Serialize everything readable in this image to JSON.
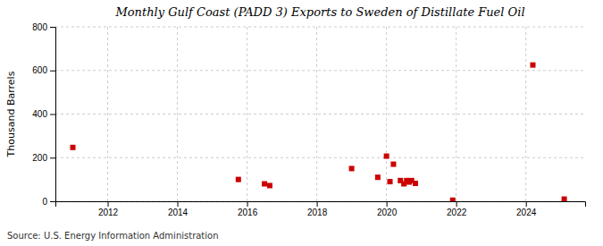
{
  "chart_data": {
    "type": "scatter",
    "title": "Monthly Gulf Coast (PADD 3) Exports to Sweden of Distillate Fuel Oil",
    "ylabel": "Thousand Barrels",
    "annotations": [
      "Source: U.S. Energy Information Administration"
    ],
    "x": [
      2011.0,
      2015.75,
      2016.5,
      2016.65,
      2019.0,
      2019.75,
      2020.0,
      2020.1,
      2020.2,
      2020.4,
      2020.5,
      2020.58,
      2020.65,
      2020.72,
      2020.83,
      2021.9,
      2024.2,
      2025.1
    ],
    "values": [
      247,
      100,
      80,
      72,
      150,
      110,
      207,
      90,
      170,
      95,
      80,
      95,
      88,
      95,
      82,
      5,
      625,
      10
    ],
    "color": "#cc0000",
    "marker": "square",
    "xlim": [
      2010.5,
      2025.7
    ],
    "xticks": [
      2012,
      2014,
      2016,
      2018,
      2020,
      2022,
      2024
    ],
    "ylim": [
      0,
      800
    ],
    "yticks": [
      0,
      200,
      400,
      600,
      800
    ],
    "grid": true
  }
}
